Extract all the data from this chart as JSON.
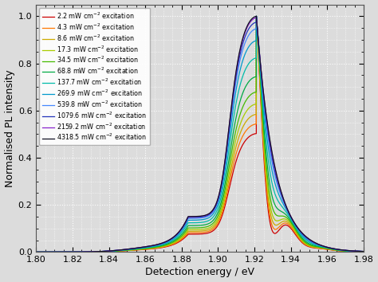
{
  "title": "",
  "xlabel": "Detection energy / eV",
  "ylabel": "Normalised PL intensity",
  "xlim": [
    1.8,
    1.98
  ],
  "ylim": [
    0.0,
    1.05
  ],
  "xticks": [
    1.8,
    1.82,
    1.84,
    1.86,
    1.88,
    1.9,
    1.92,
    1.94,
    1.96,
    1.98
  ],
  "yticks": [
    0.0,
    0.2,
    0.4,
    0.6,
    0.8,
    1.0
  ],
  "background_color": "#dcdcdc",
  "grid_color": "#ffffff",
  "series": [
    {
      "label": "2.2 mW cm$^{-2}$ excitation",
      "color": "#cc0000",
      "fp_amp": 1.0,
      "fp_decay": 0.018
    },
    {
      "label": "4.3 mW cm$^{-2}$ excitation",
      "color": "#ff7700",
      "fp_amp": 0.85,
      "fp_decay": 0.02
    },
    {
      "label": "8.6 mW cm$^{-2}$ excitation",
      "color": "#ccaa00",
      "fp_amp": 0.72,
      "fp_decay": 0.022
    },
    {
      "label": "17.3 mW cm$^{-2}$ excitation",
      "color": "#aacc00",
      "fp_amp": 0.6,
      "fp_decay": 0.025
    },
    {
      "label": "34.5 mW cm$^{-2}$ excitation",
      "color": "#44bb00",
      "fp_amp": 0.48,
      "fp_decay": 0.028
    },
    {
      "label": "68.8 mW cm$^{-2}$ excitation",
      "color": "#00aa44",
      "fp_amp": 0.35,
      "fp_decay": 0.032
    },
    {
      "label": "137.7 mW cm$^{-2}$ excitation",
      "color": "#00bbaa",
      "fp_amp": 0.22,
      "fp_decay": 0.038
    },
    {
      "label": "269.9 mW cm$^{-2}$ excitation",
      "color": "#0099cc",
      "fp_amp": 0.12,
      "fp_decay": 0.045
    },
    {
      "label": "539.8 mW cm$^{-2}$ excitation",
      "color": "#4488ff",
      "fp_amp": 0.06,
      "fp_decay": 0.055
    },
    {
      "label": "1079.6 mW cm$^{-2}$ excitation",
      "color": "#2233bb",
      "fp_amp": 0.03,
      "fp_decay": 0.06
    },
    {
      "label": "2159.2 mW cm$^{-2}$ excitation",
      "color": "#8822cc",
      "fp_amp": 0.01,
      "fp_decay": 0.065
    },
    {
      "label": "4318.5 mW cm$^{-2}$ excitation",
      "color": "#111122",
      "fp_amp": 0.0,
      "fp_decay": 0.07
    }
  ]
}
